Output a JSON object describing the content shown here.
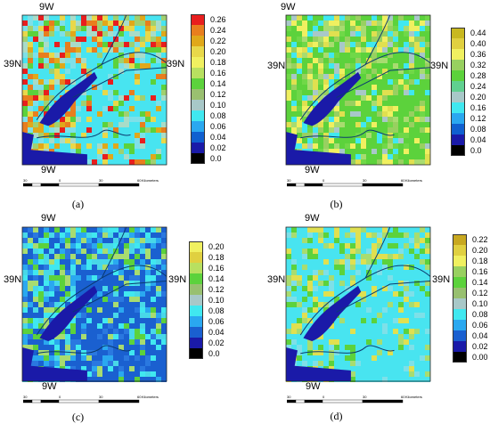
{
  "panels": [
    {
      "label": "(a)",
      "top_lon": "9W",
      "bottom_lon": "9W",
      "left_lat": "39N",
      "right_lat": "39N",
      "legend": {
        "values": [
          "0.26",
          "0.24",
          "0.22",
          "0.20",
          "0.18",
          "0.16",
          "0.14",
          "0.12",
          "0.10",
          "0.08",
          "0.06",
          "0.04",
          "0.02",
          "0.0"
        ],
        "colors": [
          "#e81e1e",
          "#e87e1e",
          "#e0a81a",
          "#e8d84a",
          "#f0f060",
          "#b8e060",
          "#5cd23c",
          "#9ac070",
          "#a8c8c8",
          "#40e8f0",
          "#2aa8f0",
          "#1060d0",
          "#1a1aa8",
          "#000000"
        ]
      },
      "scale": {
        "ticks": [
          "30",
          "0",
          "30",
          "60"
        ],
        "unit": "Kilometers"
      },
      "palette": [
        "#48e4f0",
        "#48e4f0",
        "#48e4f0",
        "#48e4f0",
        "#7ee0e8",
        "#a8dcc8",
        "#a0d070",
        "#5cd23c",
        "#e8d84a",
        "#e0a81a",
        "#e87e1e",
        "#e81e1e"
      ]
    },
    {
      "label": "(b)",
      "top_lon": "9W",
      "bottom_lon": "9W",
      "left_lat": "39N",
      "right_lat": "39N",
      "legend": {
        "values": [
          "0.44",
          "0.40",
          "0.36",
          "0.32",
          "0.28",
          "0.24",
          "0.20",
          "0.16",
          "0.12",
          "0.08",
          "0.04",
          "0.0"
        ],
        "colors": [
          "#c8b820",
          "#e0d040",
          "#f0f060",
          "#98d060",
          "#5cd23c",
          "#60d090",
          "#a8c8c8",
          "#40e8f0",
          "#2aa8f0",
          "#1060d0",
          "#1a1aa8",
          "#000000"
        ]
      },
      "scale": {
        "ticks": [
          "30",
          "0",
          "30",
          "60"
        ],
        "unit": "Kilometers"
      },
      "palette": [
        "#5cd23c",
        "#5cd23c",
        "#5cd23c",
        "#70d848",
        "#98d060",
        "#a8dc70",
        "#e0e050",
        "#f0f060",
        "#a8c8c8",
        "#40e8f0"
      ]
    },
    {
      "label": "(c)",
      "top_lon": "9W",
      "bottom_lon": "9W",
      "left_lat": "39N",
      "right_lat": "39N",
      "legend": {
        "values": [
          "0.20",
          "0.18",
          "0.16",
          "0.14",
          "0.12",
          "0.10",
          "0.08",
          "0.06",
          "0.04",
          "0.02",
          "0.0"
        ],
        "colors": [
          "#f0f060",
          "#e0d040",
          "#b8e060",
          "#5cd23c",
          "#98c070",
          "#a8c8c8",
          "#40e8f0",
          "#2aa8f0",
          "#1a60d0",
          "#1a1aa8",
          "#000000"
        ]
      },
      "scale": {
        "ticks": [
          "30",
          "0",
          "30",
          "60"
        ],
        "unit": "Kilometers"
      },
      "palette": [
        "#1a60d0",
        "#1a60d0",
        "#1a60d0",
        "#2a78e0",
        "#2aa8f0",
        "#40e8f0",
        "#48d8e8",
        "#a8dc70",
        "#5cd23c"
      ]
    },
    {
      "label": "(d)",
      "top_lon": "9W",
      "bottom_lon": "9W",
      "left_lat": "39N",
      "right_lat": "39N",
      "legend": {
        "values": [
          "0.22",
          "0.20",
          "0.18",
          "0.16",
          "0.14",
          "0.12",
          "0.10",
          "0.08",
          "0.06",
          "0.04",
          "0.02",
          "0.00"
        ],
        "colors": [
          "#c8a820",
          "#e0d040",
          "#f0f060",
          "#98d060",
          "#5cd23c",
          "#98c070",
          "#a8c8c8",
          "#40e8f0",
          "#2aa8f0",
          "#1a60d0",
          "#1a1aa8",
          "#000000"
        ]
      },
      "scale": {
        "ticks": [
          "30",
          "0",
          "30",
          "60"
        ],
        "unit": "Kilometers"
      },
      "palette": [
        "#48e4f0",
        "#48e4f0",
        "#48e4f0",
        "#48e4f0",
        "#48e4f0",
        "#7ee0e8",
        "#a8dc70",
        "#5cd23c",
        "#e0e050"
      ]
    }
  ]
}
